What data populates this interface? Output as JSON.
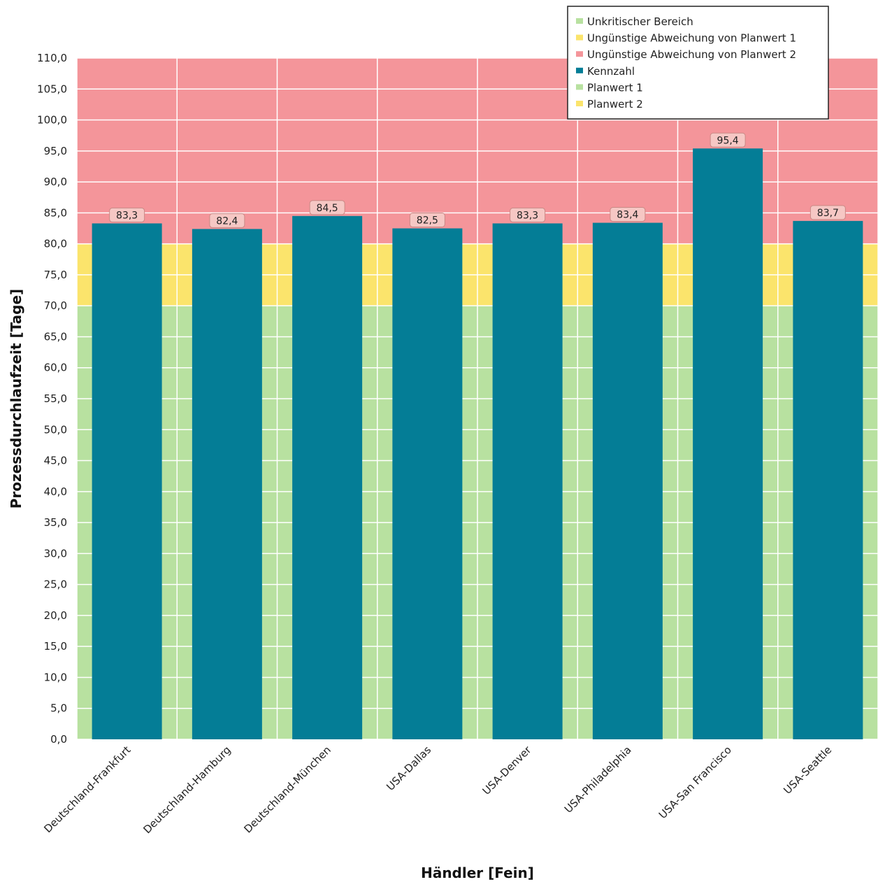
{
  "chart_data": {
    "type": "bar",
    "ylabel": "Prozessdurchlaufzeit [Tage]",
    "xlabel": "Händler [Fein]",
    "ylim": [
      0,
      110
    ],
    "ytick_step": 5,
    "ytick_labels": [
      "0,0",
      "5,0",
      "10,0",
      "15,0",
      "20,0",
      "25,0",
      "30,0",
      "35,0",
      "40,0",
      "45,0",
      "50,0",
      "55,0",
      "60,0",
      "65,0",
      "70,0",
      "75,0",
      "80,0",
      "85,0",
      "90,0",
      "95,0",
      "100,0",
      "105,0",
      "110,0"
    ],
    "grid": true,
    "categories": [
      "Deutschland-Frankfurt",
      "Deutschland-Hamburg",
      "Deutschland-München",
      "USA-Dallas",
      "USA-Denver",
      "USA-Philadelphia",
      "USA-San Francisco",
      "USA-Seattle"
    ],
    "series": [
      {
        "name": "Kennzahl",
        "color": "#047d96",
        "values": [
          83.3,
          82.4,
          84.5,
          82.5,
          83.3,
          83.4,
          95.4,
          83.7
        ],
        "labels": [
          "83,3",
          "82,4",
          "84,5",
          "82,5",
          "83,3",
          "83,4",
          "95,4",
          "83,7"
        ]
      }
    ],
    "bands": [
      {
        "name": "Unkritischer Bereich",
        "from": 0,
        "to": 70,
        "color": "#b8e1a0"
      },
      {
        "name": "Ungünstige Abweichung von Planwert 1",
        "from": 70,
        "to": 80,
        "color": "#fbe46c"
      },
      {
        "name": "Ungünstige Abweichung von Planwert 2",
        "from": 80,
        "to": 110,
        "color": "#f4959a"
      }
    ],
    "planwerte": [
      {
        "name": "Planwert 1",
        "value": 70,
        "color": "#b8e1a0"
      },
      {
        "name": "Planwert 2",
        "value": 80,
        "color": "#fbe46c"
      }
    ],
    "legend": {
      "position": "top-right",
      "entries": [
        {
          "label": "Unkritischer Bereich",
          "color": "#b8e1a0"
        },
        {
          "label": "Ungünstige Abweichung von Planwert 1",
          "color": "#fbe46c"
        },
        {
          "label": "Ungünstige Abweichung von Planwert 2",
          "color": "#f4959a"
        },
        {
          "label": "Kennzahl",
          "color": "#047d96"
        },
        {
          "label": "Planwert 1",
          "color": "#b8e1a0"
        },
        {
          "label": "Planwert 2",
          "color": "#fbe46c"
        }
      ]
    }
  }
}
